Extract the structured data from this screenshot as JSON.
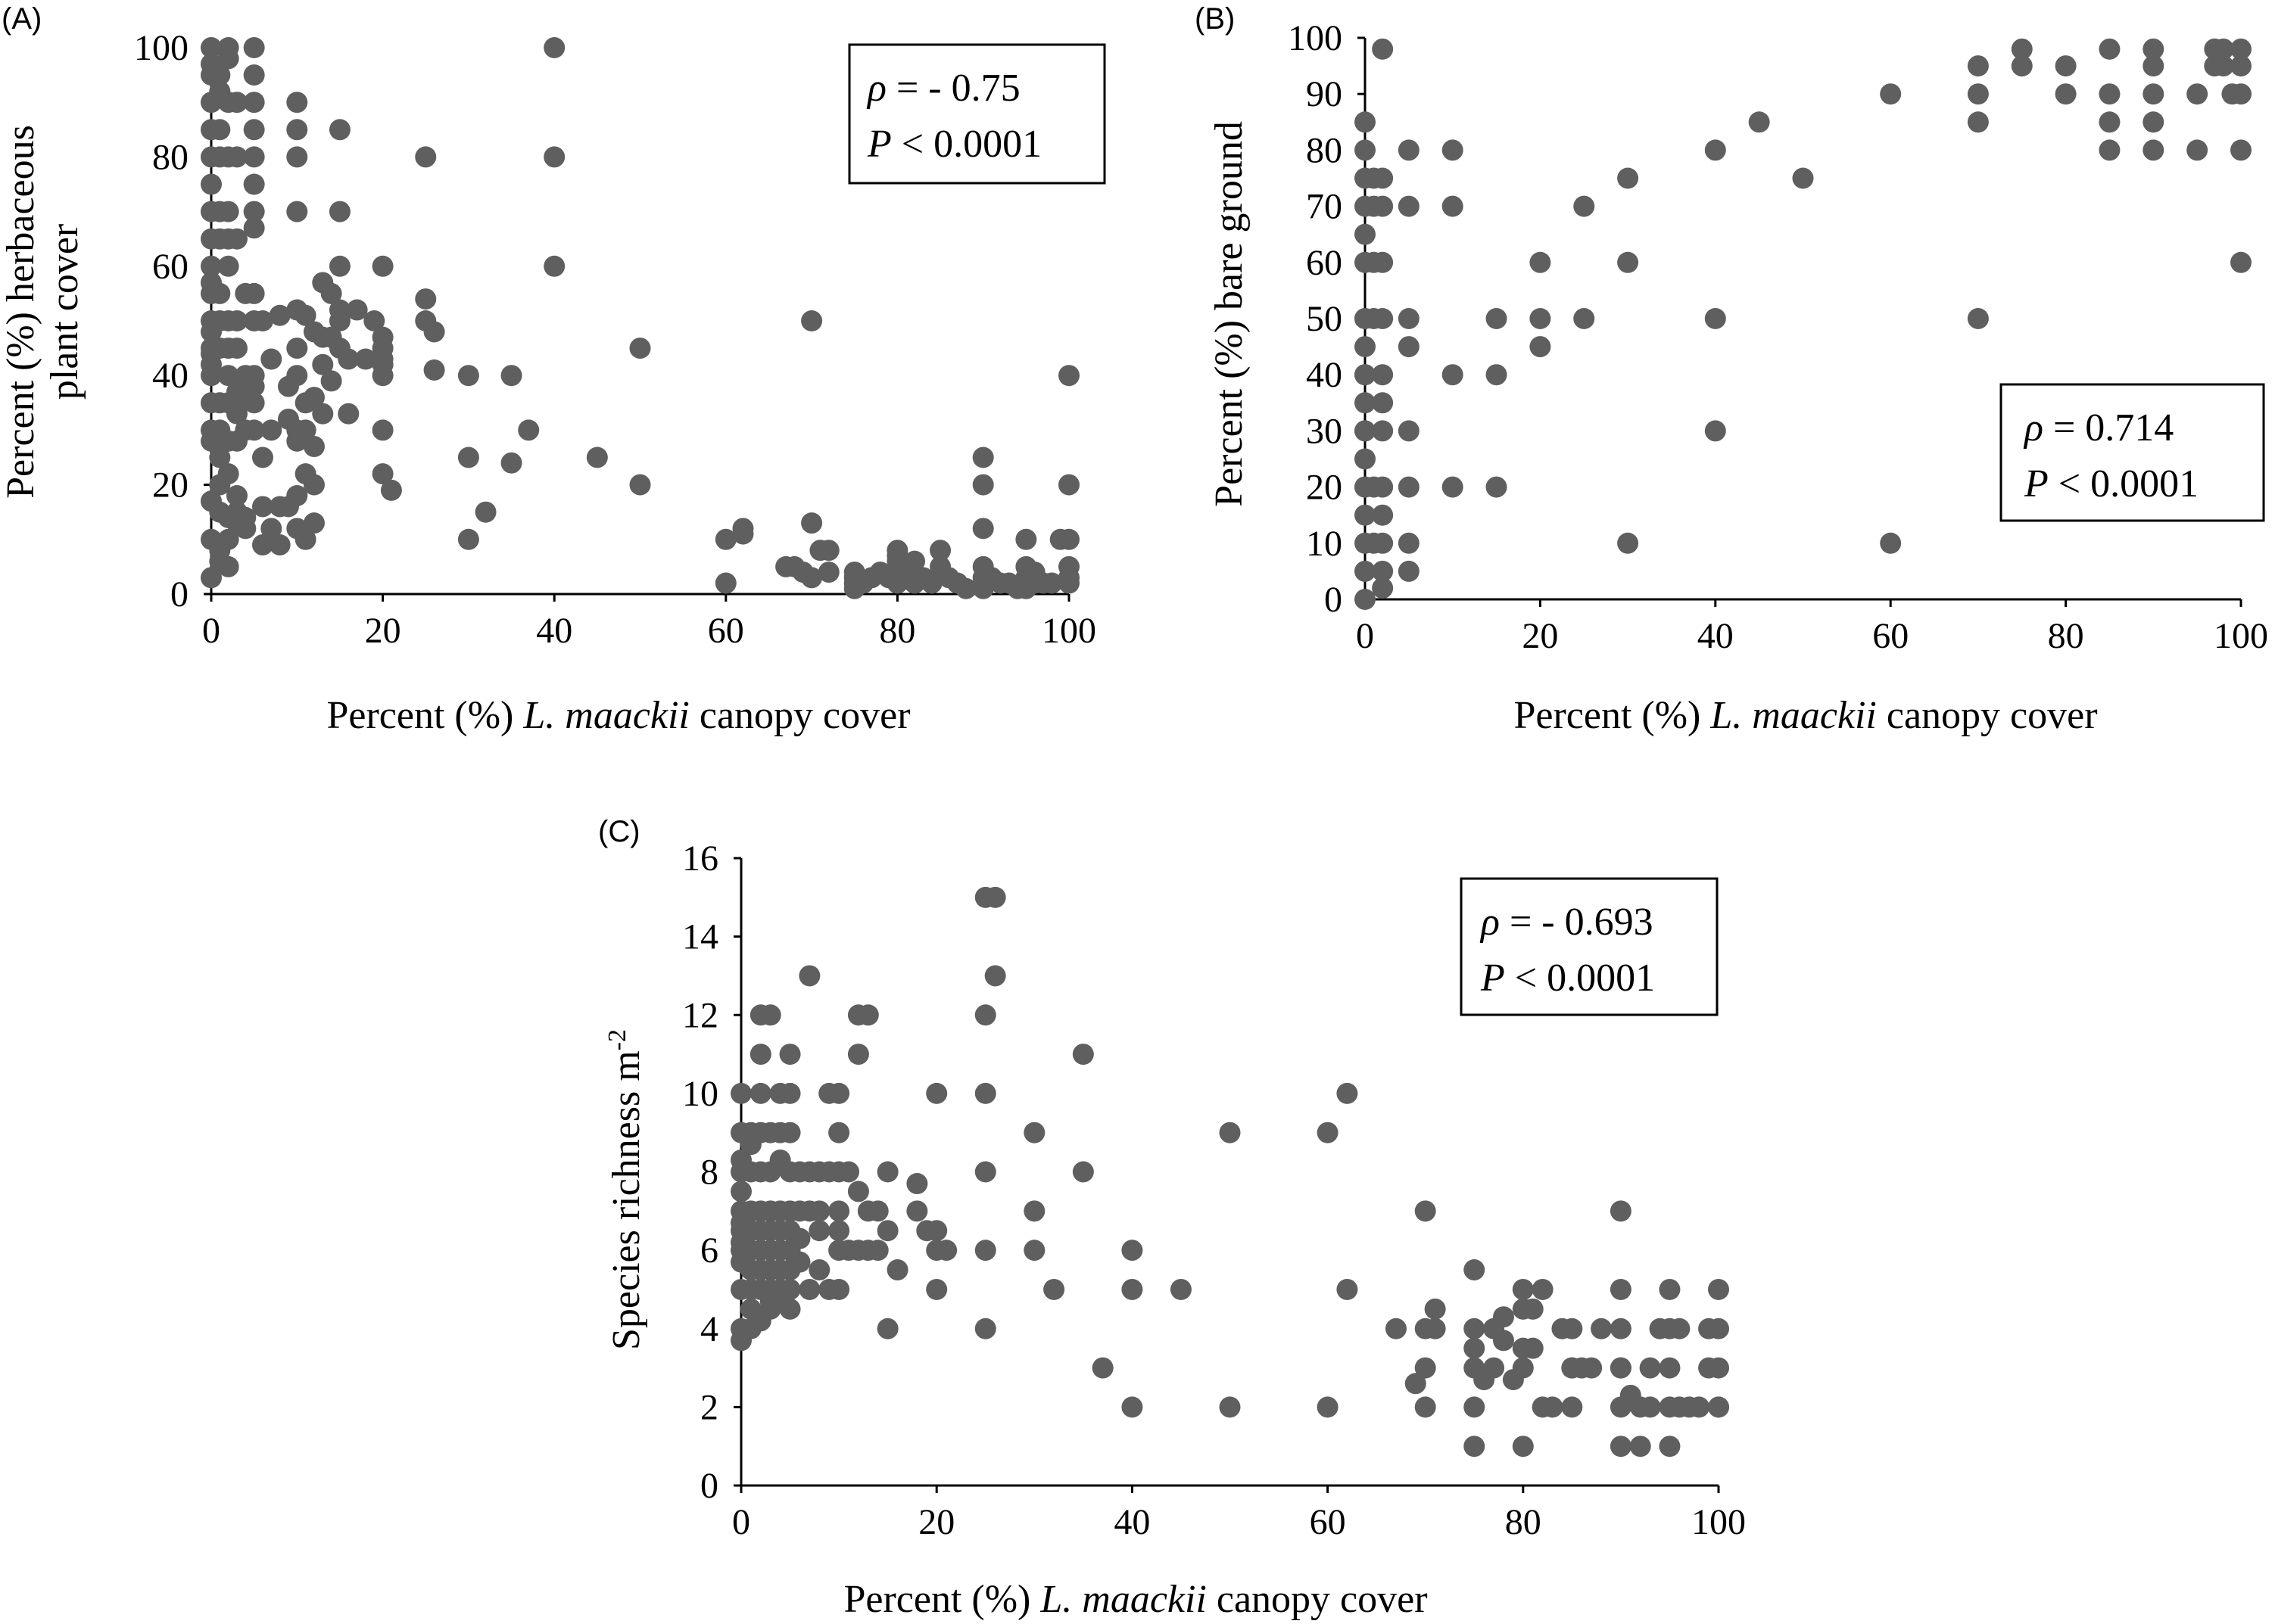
{
  "figure": {
    "background": "#ffffff",
    "point_color": "#5f5f5f",
    "axis_color": "#000000"
  },
  "chart_data": [
    {
      "type": "scatter",
      "panel_label": "(A)",
      "xlabel_pre": "Percent (%) ",
      "xlabel_italic": "L. maackii",
      "xlabel_post": " canopy cover",
      "ylabel_line1": "Percent (%) herbaceous",
      "ylabel_line2": "plant cover",
      "xlim": [
        0,
        100
      ],
      "ylim": [
        0,
        100
      ],
      "xticks": [
        "0",
        "20",
        "40",
        "60",
        "80",
        "100"
      ],
      "yticks": [
        "0",
        "20",
        "40",
        "60",
        "80",
        "100"
      ],
      "grid": false,
      "stat_rho": " = - 0.75",
      "stat_p": " < 0.0001",
      "stat_box_position": "top-right",
      "x": [
        0,
        0,
        0,
        0,
        0,
        0,
        0,
        0,
        0,
        0,
        0,
        0,
        0,
        0,
        0,
        0,
        0,
        0,
        0,
        0,
        0,
        0,
        0,
        0,
        1,
        1,
        1,
        1,
        1,
        1,
        1,
        1,
        1,
        1,
        1,
        1,
        1,
        1,
        1,
        1,
        2,
        2,
        2,
        2,
        2,
        2,
        2,
        2,
        2,
        2,
        2,
        2,
        2,
        2,
        2,
        2,
        3,
        3,
        3,
        3,
        3,
        3,
        3,
        3,
        3,
        3,
        3,
        4,
        4,
        4,
        4,
        4,
        4,
        5,
        5,
        5,
        5,
        5,
        5,
        5,
        5,
        5,
        5,
        5,
        5,
        5,
        5,
        6,
        6,
        6,
        6,
        7,
        7,
        7,
        8,
        8,
        8,
        9,
        9,
        9,
        10,
        10,
        10,
        10,
        10,
        10,
        10,
        10,
        10,
        10,
        10,
        11,
        11,
        11,
        11,
        11,
        12,
        12,
        12,
        12,
        12,
        13,
        13,
        13,
        13,
        14,
        14,
        14,
        15,
        15,
        15,
        15,
        15,
        15,
        16,
        16,
        17,
        18,
        19,
        20,
        20,
        20,
        20,
        20,
        20,
        20,
        20,
        21,
        25,
        25,
        25,
        26,
        26,
        30,
        30,
        30,
        32,
        35,
        35,
        37,
        40,
        40,
        40,
        45,
        50,
        50,
        60,
        60,
        62,
        62,
        67,
        68,
        69,
        70,
        70,
        70,
        71,
        72,
        72,
        75,
        75,
        75,
        75,
        76,
        77,
        78,
        79,
        80,
        80,
        80,
        80,
        80,
        80,
        81,
        82,
        82,
        83,
        84,
        85,
        85,
        86,
        87,
        88,
        90,
        90,
        90,
        90,
        90,
        90,
        91,
        92,
        93,
        94,
        95,
        95,
        95,
        95,
        96,
        96,
        97,
        98,
        99,
        100,
        100,
        100,
        100,
        100,
        100
      ],
      "y": [
        100,
        97,
        95,
        90,
        85,
        80,
        75,
        70,
        65,
        60,
        57,
        50,
        45,
        40,
        35,
        30,
        28,
        17,
        10,
        3,
        55,
        48,
        44,
        42,
        95,
        92,
        85,
        80,
        70,
        65,
        55,
        50,
        45,
        35,
        30,
        25,
        20,
        15,
        8,
        6,
        100,
        98,
        90,
        80,
        70,
        65,
        60,
        50,
        45,
        40,
        35,
        28,
        22,
        14,
        10,
        5,
        90,
        80,
        65,
        50,
        45,
        37,
        33,
        28,
        18,
        15,
        13,
        55,
        40,
        36,
        30,
        14,
        12,
        100,
        95,
        90,
        85,
        80,
        75,
        70,
        67,
        55,
        50,
        40,
        38,
        35,
        30,
        50,
        25,
        16,
        9,
        43,
        30,
        12,
        51,
        16,
        9,
        38,
        32,
        16,
        90,
        85,
        80,
        70,
        52,
        45,
        40,
        30,
        28,
        18,
        12,
        51,
        35,
        30,
        22,
        10,
        48,
        36,
        27,
        20,
        13,
        57,
        47,
        42,
        33,
        55,
        47,
        39,
        85,
        70,
        60,
        52,
        50,
        45,
        43,
        33,
        52,
        43,
        50,
        60,
        47,
        45,
        43,
        42,
        40,
        30,
        22,
        19,
        80,
        54,
        50,
        48,
        41,
        40,
        25,
        10,
        15,
        40,
        24,
        30,
        100,
        80,
        60,
        25,
        45,
        20,
        10,
        2,
        12,
        11,
        5,
        5,
        4,
        50,
        13,
        3,
        8,
        8,
        4,
        4,
        3,
        2,
        1,
        2,
        3,
        4,
        3,
        8,
        7,
        6,
        5,
        3,
        2,
        4,
        6,
        2,
        3,
        2,
        8,
        5,
        3,
        2,
        1,
        25,
        20,
        12,
        5,
        3,
        1,
        3,
        2,
        2,
        1,
        10,
        5,
        3,
        1,
        2,
        4,
        2,
        2,
        10,
        40,
        20,
        10,
        5,
        3,
        2
      ]
    },
    {
      "type": "scatter",
      "panel_label": "(B)",
      "xlabel_pre": "Percent (%) ",
      "xlabel_italic": "L. maackii",
      "xlabel_post": " canopy cover",
      "ylabel_line1": "Percent (%) bare ground",
      "xlim": [
        0,
        100
      ],
      "ylim": [
        0,
        100
      ],
      "xticks": [
        "0",
        "20",
        "40",
        "60",
        "80",
        "100"
      ],
      "yticks": [
        "0",
        "10",
        "20",
        "30",
        "40",
        "50",
        "60",
        "70",
        "80",
        "90",
        "100"
      ],
      "grid": false,
      "stat_rho": " = 0.714",
      "stat_p": " < 0.0001",
      "stat_box_position": "right",
      "x": [
        0,
        0,
        0,
        0,
        0,
        0,
        0,
        0,
        0,
        0,
        0,
        0,
        0,
        0,
        0,
        0,
        0,
        0,
        0,
        0,
        0,
        1,
        1,
        1,
        1,
        1,
        1,
        2,
        2,
        2,
        2,
        2,
        2,
        2,
        2,
        2,
        2,
        2,
        2,
        2,
        5,
        5,
        5,
        5,
        5,
        5,
        5,
        5,
        10,
        10,
        10,
        10,
        15,
        15,
        15,
        20,
        20,
        20,
        25,
        25,
        30,
        30,
        30,
        40,
        40,
        40,
        45,
        50,
        60,
        60,
        70,
        70,
        70,
        70,
        75,
        75,
        80,
        80,
        85,
        85,
        85,
        85,
        90,
        90,
        90,
        90,
        90,
        95,
        95,
        97,
        97,
        98,
        98,
        99,
        100,
        100,
        100,
        100,
        100
      ],
      "y": [
        85,
        80,
        75,
        70,
        65,
        60,
        50,
        45,
        40,
        35,
        30,
        25,
        20,
        15,
        10,
        5,
        0,
        50,
        40,
        30,
        20,
        75,
        70,
        60,
        50,
        20,
        10,
        98,
        75,
        70,
        50,
        40,
        35,
        30,
        20,
        15,
        10,
        5,
        2,
        60,
        80,
        70,
        50,
        45,
        30,
        20,
        10,
        5,
        80,
        70,
        40,
        20,
        50,
        40,
        20,
        60,
        50,
        45,
        70,
        50,
        75,
        60,
        10,
        80,
        50,
        30,
        85,
        75,
        90,
        10,
        95,
        90,
        85,
        50,
        98,
        95,
        95,
        90,
        98,
        90,
        85,
        80,
        98,
        95,
        90,
        85,
        80,
        90,
        80,
        98,
        95,
        98,
        95,
        90,
        98,
        95,
        90,
        80,
        60
      ]
    },
    {
      "type": "scatter",
      "panel_label": "(C)",
      "xlabel_pre": "Percent (%) ",
      "xlabel_italic": "L. maackii",
      "xlabel_post": " canopy cover",
      "ylabel_line1": "Species richness m",
      "ylabel_sup": "-2",
      "xlim": [
        0,
        100
      ],
      "ylim": [
        0,
        16
      ],
      "xticks": [
        "0",
        "20",
        "40",
        "60",
        "80",
        "100"
      ],
      "yticks": [
        "0",
        "2",
        "4",
        "6",
        "8",
        "10",
        "12",
        "14",
        "16"
      ],
      "grid": false,
      "stat_rho": " = - 0.693",
      "stat_p": " < 0.0001",
      "stat_box_position": "top-right",
      "x": [
        0,
        0,
        0,
        0,
        0,
        0,
        0,
        0,
        0,
        0,
        0,
        0,
        0,
        0,
        1,
        1,
        1,
        1,
        1,
        1,
        1,
        1,
        1,
        1,
        2,
        2,
        2,
        2,
        2,
        2,
        2,
        2,
        2,
        2,
        2,
        3,
        3,
        3,
        3,
        3,
        3,
        3,
        3,
        3,
        3,
        4,
        4,
        4,
        4,
        4,
        4,
        4,
        4,
        4,
        5,
        5,
        5,
        5,
        5,
        5,
        5,
        5,
        5,
        5,
        6,
        6,
        6,
        6,
        7,
        7,
        7,
        7,
        8,
        8,
        8,
        8,
        9,
        9,
        9,
        10,
        10,
        10,
        10,
        10,
        10,
        10,
        11,
        11,
        12,
        12,
        12,
        12,
        13,
        13,
        13,
        14,
        14,
        15,
        15,
        15,
        16,
        18,
        18,
        19,
        20,
        20,
        20,
        20,
        21,
        25,
        25,
        25,
        25,
        25,
        25,
        26,
        26,
        30,
        30,
        30,
        32,
        35,
        35,
        37,
        40,
        40,
        40,
        45,
        50,
        50,
        60,
        60,
        62,
        62,
        67,
        69,
        70,
        70,
        70,
        70,
        71,
        71,
        75,
        75,
        75,
        75,
        75,
        75,
        76,
        77,
        77,
        78,
        78,
        79,
        80,
        80,
        80,
        80,
        80,
        81,
        81,
        82,
        82,
        83,
        84,
        85,
        85,
        85,
        85,
        86,
        87,
        88,
        90,
        90,
        90,
        90,
        90,
        90,
        90,
        91,
        92,
        92,
        93,
        93,
        94,
        95,
        95,
        95,
        95,
        95,
        96,
        96,
        97,
        98,
        99,
        99,
        100,
        100,
        100,
        100,
        100
      ],
      "y": [
        10,
        9,
        8.3,
        8,
        7.5,
        7,
        6.7,
        6.5,
        6.2,
        6,
        5.7,
        5,
        4,
        3.7,
        9,
        8.7,
        8,
        7,
        6.5,
        6,
        5.5,
        5,
        4.5,
        4,
        12,
        11,
        10,
        9,
        8,
        7,
        6.5,
        6,
        5.5,
        5,
        4.2,
        12,
        9,
        8,
        7,
        6.5,
        6,
        5.5,
        5,
        4.7,
        4.5,
        10,
        9,
        8.3,
        7,
        6.5,
        6,
        5.5,
        5,
        4.8,
        11,
        10,
        9,
        8,
        7,
        6.5,
        6,
        5.5,
        5,
        4.5,
        8,
        7,
        6.3,
        5.7,
        13,
        8,
        7,
        5,
        8,
        7,
        6.5,
        5.5,
        10,
        8,
        5,
        10,
        9,
        8,
        7,
        6.5,
        6,
        5,
        8,
        6,
        12,
        11,
        7.5,
        6,
        12,
        7,
        6,
        7,
        6,
        8,
        6.5,
        4,
        5.5,
        7.7,
        7,
        6.5,
        10,
        6.5,
        6,
        5,
        6,
        15,
        12,
        10,
        8,
        6,
        4,
        13,
        15,
        9,
        7,
        6,
        5,
        11,
        8,
        3,
        6,
        5,
        2,
        5,
        9,
        2,
        9,
        2,
        10,
        5,
        4,
        2.6,
        7,
        4,
        3,
        2,
        4.5,
        4,
        5.5,
        4,
        3.5,
        3,
        2,
        1,
        2.7,
        4,
        3,
        4.3,
        3.7,
        2.7,
        5,
        4.5,
        3.5,
        3,
        1,
        4.5,
        3.5,
        5,
        2,
        2,
        4,
        4,
        3,
        2,
        3,
        3,
        3,
        4,
        7,
        5,
        4,
        3,
        2,
        1,
        3,
        2.3,
        2,
        1,
        3,
        2,
        4,
        5,
        4,
        3,
        2,
        1,
        2,
        4,
        2,
        2,
        3,
        4,
        5,
        4,
        3,
        2,
        2
      ]
    }
  ]
}
